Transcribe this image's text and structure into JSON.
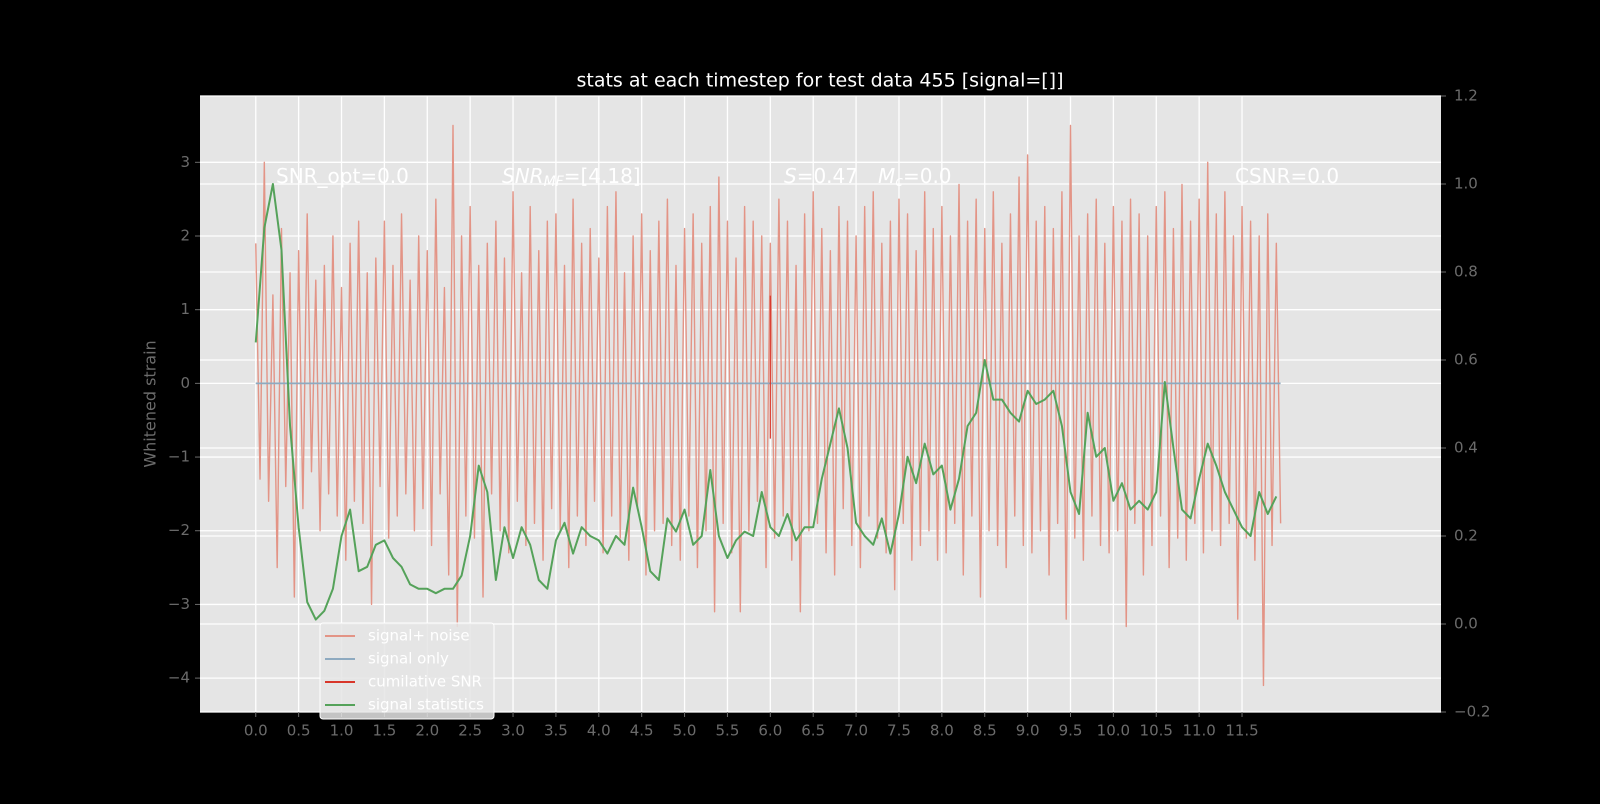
{
  "chart_data": {
    "type": "line",
    "title": "stats at each timestep for test data 455 [signal=[]]",
    "ylabel": "Whitened strain",
    "xlim": [
      -0.65,
      13.82
    ],
    "ylim": [
      -4.46,
      3.9
    ],
    "y2lim": [
      -0.2,
      1.2
    ],
    "grid": true,
    "legend": "lower left",
    "xticks": [
      {
        "value": 0,
        "label": "0.0"
      },
      0.5,
      {
        "value": 1,
        "label": "1.0"
      },
      1.5,
      {
        "value": 2,
        "label": "2.0"
      },
      2.5,
      {
        "value": 3,
        "label": "3.0"
      },
      3.5,
      {
        "value": 4,
        "label": "4.0"
      },
      4.5,
      {
        "value": 5,
        "label": "5.0"
      },
      5.5,
      {
        "value": 6,
        "label": "6.0"
      },
      6.5,
      {
        "value": 7,
        "label": "7.0"
      },
      7.5,
      {
        "value": 8,
        "label": "8.0"
      },
      8.5,
      {
        "value": 9,
        "label": "9.0"
      },
      9.5,
      {
        "value": 10,
        "label": "10.0"
      },
      10.5,
      {
        "value": 11,
        "label": "11.0"
      },
      11.5
    ],
    "yticks": [
      {
        "value": -4,
        "label": "−4"
      },
      {
        "value": -3,
        "label": "−3"
      },
      {
        "value": -2,
        "label": "−2"
      },
      {
        "value": -1,
        "label": "−1"
      },
      0,
      1,
      2,
      3
    ],
    "y2ticks": [
      {
        "value": -0.2,
        "label": "−0.2"
      },
      {
        "value": 0,
        "label": "0.0"
      },
      0.2,
      0.4,
      0.6,
      0.8,
      {
        "value": 1,
        "label": "1.0"
      },
      1.2
    ],
    "annotations": [
      {
        "text": "SNR_opt=0.0"
      },
      {
        "symbol": "SNR",
        "subscript": "MF",
        "text": "=[4.18]"
      },
      {
        "symbol": "S",
        "text": "=0.47"
      },
      {
        "symbol": "M",
        "subscript": "c",
        "text": "=0.0"
      },
      {
        "text": "CSNR=0.0"
      }
    ],
    "series": [
      {
        "name": "signal+ noise",
        "color": "#e39486",
        "x": [
          0,
          0.05,
          0.1,
          0.15,
          0.2,
          0.25,
          0.3,
          0.35,
          0.4,
          0.45,
          0.5,
          0.55,
          0.6,
          0.65,
          0.7,
          0.75,
          0.8,
          0.85,
          0.9,
          0.95,
          1,
          1.05,
          1.1,
          1.15,
          1.2,
          1.25,
          1.3,
          1.35,
          1.4,
          1.45,
          1.5,
          1.55,
          1.6,
          1.65,
          1.7,
          1.75,
          1.8,
          1.85,
          1.9,
          1.95,
          2,
          2.05,
          2.1,
          2.15,
          2.2,
          2.25,
          2.3,
          2.35,
          2.4,
          2.45,
          2.5,
          2.55,
          2.6,
          2.65,
          2.7,
          2.75,
          2.8,
          2.85,
          2.9,
          2.95,
          3,
          3.05,
          3.1,
          3.15,
          3.2,
          3.25,
          3.3,
          3.35,
          3.4,
          3.45,
          3.5,
          3.55,
          3.6,
          3.65,
          3.7,
          3.75,
          3.8,
          3.85,
          3.9,
          3.95,
          4,
          4.05,
          4.1,
          4.15,
          4.2,
          4.25,
          4.3,
          4.35,
          4.4,
          4.45,
          4.5,
          4.55,
          4.6,
          4.65,
          4.7,
          4.75,
          4.8,
          4.85,
          4.9,
          4.95,
          5,
          5.05,
          5.1,
          5.15,
          5.2,
          5.25,
          5.3,
          5.35,
          5.4,
          5.45,
          5.5,
          5.55,
          5.6,
          5.65,
          5.7,
          5.75,
          5.8,
          5.85,
          5.9,
          5.95,
          6,
          6.05,
          6.1,
          6.15,
          6.2,
          6.25,
          6.3,
          6.35,
          6.4,
          6.45,
          6.5,
          6.55,
          6.6,
          6.65,
          6.7,
          6.75,
          6.8,
          6.85,
          6.9,
          6.95,
          7,
          7.05,
          7.1,
          7.15,
          7.2,
          7.25,
          7.3,
          7.35,
          7.4,
          7.45,
          7.5,
          7.55,
          7.6,
          7.65,
          7.7,
          7.75,
          7.8,
          7.85,
          7.9,
          7.95,
          8,
          8.05,
          8.1,
          8.15,
          8.2,
          8.25,
          8.3,
          8.35,
          8.4,
          8.45,
          8.5,
          8.55,
          8.6,
          8.65,
          8.7,
          8.75,
          8.8,
          8.85,
          8.9,
          8.95,
          9,
          9.05,
          9.1,
          9.15,
          9.2,
          9.25,
          9.3,
          9.35,
          9.4,
          9.45,
          9.5,
          9.55,
          9.6,
          9.65,
          9.7,
          9.75,
          9.8,
          9.85,
          9.9,
          9.95,
          10,
          10.05,
          10.1,
          10.15,
          10.2,
          10.25,
          10.3,
          10.35,
          10.4,
          10.45,
          10.5,
          10.55,
          10.6,
          10.65,
          10.7,
          10.75,
          10.8,
          10.85,
          10.9,
          10.95,
          11,
          11.05,
          11.1,
          11.15,
          11.2,
          11.25,
          11.3,
          11.35,
          11.4,
          11.45,
          11.5,
          11.55,
          11.6,
          11.65,
          11.7,
          11.75,
          11.8,
          11.85,
          11.9,
          11.95
        ],
        "values": [
          1.9,
          -1.3,
          3.0,
          -1.6,
          1.2,
          -2.5,
          2.1,
          -1.4,
          1.5,
          -2.9,
          1.8,
          -1.7,
          2.3,
          -1.2,
          1.4,
          -2.0,
          1.6,
          -1.5,
          2.0,
          -1.8,
          1.3,
          -2.4,
          1.9,
          -1.6,
          2.2,
          -1.9,
          1.5,
          -3.0,
          1.7,
          -1.4,
          2.2,
          -2.1,
          1.6,
          -1.8,
          2.3,
          -1.5,
          1.4,
          -2.0,
          2.0,
          -1.7,
          1.8,
          -2.2,
          2.5,
          -1.5,
          1.3,
          -2.6,
          3.5,
          -3.3,
          2.0,
          -1.8,
          2.4,
          -2.1,
          1.6,
          -2.9,
          1.9,
          -1.5,
          2.2,
          -2.0,
          1.7,
          -2.3,
          2.6,
          -1.6,
          1.5,
          -2.2,
          2.4,
          -1.9,
          1.8,
          -2.4,
          2.2,
          -1.7,
          2.3,
          -2.0,
          1.6,
          -2.5,
          2.5,
          -1.8,
          1.9,
          -2.2,
          2.1,
          -1.6,
          1.7,
          -2.3,
          2.4,
          -1.8,
          2.6,
          -2.1,
          1.5,
          -2.4,
          2.0,
          -1.7,
          2.3,
          -2.6,
          1.8,
          -2.0,
          2.2,
          -1.9,
          2.5,
          -2.2,
          1.6,
          -2.4,
          2.1,
          -1.8,
          2.3,
          -2.5,
          1.9,
          -2.0,
          2.4,
          -3.1,
          2.8,
          -1.9,
          2.2,
          -2.3,
          1.7,
          -3.1,
          2.4,
          -2.0,
          2.2,
          -1.6,
          2.0,
          -2.5,
          1.9,
          -2.1,
          2.5,
          -1.8,
          2.2,
          -2.4,
          1.6,
          -3.1,
          2.3,
          -2.0,
          2.6,
          -1.9,
          2.1,
          -2.3,
          1.8,
          -2.6,
          2.4,
          -1.7,
          2.2,
          -2.2,
          2.0,
          -2.5,
          2.4,
          -1.8,
          2.6,
          -2.1,
          1.9,
          -2.3,
          2.2,
          -2.8,
          2.5,
          -1.9,
          2.3,
          -2.4,
          1.8,
          -2.2,
          2.6,
          -2.0,
          2.1,
          -2.4,
          2.4,
          -2.3,
          2.0,
          -1.9,
          2.7,
          -2.6,
          2.2,
          -1.8,
          2.5,
          -2.9,
          2.1,
          -2.0,
          2.6,
          -2.2,
          1.9,
          -2.5,
          2.3,
          -1.8,
          2.8,
          -2.2,
          3.1,
          -2.3,
          2.2,
          -2.0,
          2.4,
          -2.6,
          2.1,
          -1.9,
          2.6,
          -3.2,
          3.5,
          -2.1,
          2.0,
          -2.4,
          2.3,
          -1.8,
          2.5,
          -2.2,
          1.9,
          -2.3,
          2.4,
          -2.0,
          2.2,
          -3.3,
          2.5,
          -1.9,
          2.3,
          -2.6,
          2.0,
          -2.2,
          2.4,
          -1.8,
          2.6,
          -2.5,
          2.1,
          -2.1,
          2.7,
          -2.4,
          2.2,
          -1.9,
          2.5,
          -2.3,
          3.0,
          -2.0,
          2.3,
          -2.2,
          2.6,
          -1.9,
          2.0,
          -3.2,
          2.4,
          -2.1,
          2.2,
          -2.4,
          2.0,
          -4.1,
          2.3,
          -2.2,
          1.9,
          -1.9
        ]
      },
      {
        "name": "signal only",
        "color": "#8eaac0",
        "x": [
          0,
          11.95
        ],
        "values": [
          0,
          0
        ]
      },
      {
        "name": "cumilative SNR",
        "color": "#d8362a",
        "x": [
          6.0,
          6.0
        ],
        "values": [
          1.19,
          -0.75
        ]
      },
      {
        "name": "signal statistics",
        "color": "#55a25a",
        "axis": "y2",
        "x": [
          0,
          0.1,
          0.2,
          0.3,
          0.4,
          0.5,
          0.6,
          0.7,
          0.8,
          0.9,
          1,
          1.1,
          1.2,
          1.3,
          1.4,
          1.5,
          1.6,
          1.7,
          1.8,
          1.9,
          2,
          2.1,
          2.2,
          2.3,
          2.4,
          2.5,
          2.6,
          2.7,
          2.8,
          2.9,
          3,
          3.1,
          3.2,
          3.3,
          3.4,
          3.5,
          3.6,
          3.7,
          3.8,
          3.9,
          4,
          4.1,
          4.2,
          4.3,
          4.4,
          4.5,
          4.6,
          4.7,
          4.8,
          4.9,
          5,
          5.1,
          5.2,
          5.3,
          5.4,
          5.5,
          5.6,
          5.7,
          5.8,
          5.9,
          6,
          6.1,
          6.2,
          6.3,
          6.4,
          6.5,
          6.6,
          6.7,
          6.8,
          6.9,
          7,
          7.1,
          7.2,
          7.3,
          7.4,
          7.5,
          7.6,
          7.7,
          7.8,
          7.9,
          8,
          8.1,
          8.2,
          8.3,
          8.4,
          8.5,
          8.6,
          8.7,
          8.8,
          8.9,
          9,
          9.1,
          9.2,
          9.3,
          9.4,
          9.5,
          9.6,
          9.7,
          9.8,
          9.9,
          10,
          10.1,
          10.2,
          10.3,
          10.4,
          10.5,
          10.6,
          10.7,
          10.8,
          10.9,
          11,
          11.1,
          11.2,
          11.3,
          11.4,
          11.5,
          11.6,
          11.7,
          11.8,
          11.9
        ],
        "values": [
          0.64,
          0.9,
          1.0,
          0.85,
          0.45,
          0.22,
          0.05,
          0.01,
          0.03,
          0.08,
          0.2,
          0.26,
          0.12,
          0.13,
          0.18,
          0.19,
          0.15,
          0.13,
          0.09,
          0.08,
          0.08,
          0.07,
          0.08,
          0.08,
          0.11,
          0.2,
          0.36,
          0.3,
          0.1,
          0.22,
          0.15,
          0.22,
          0.18,
          0.1,
          0.08,
          0.19,
          0.23,
          0.16,
          0.22,
          0.2,
          0.19,
          0.16,
          0.2,
          0.18,
          0.31,
          0.22,
          0.12,
          0.1,
          0.24,
          0.21,
          0.26,
          0.18,
          0.2,
          0.35,
          0.2,
          0.15,
          0.19,
          0.21,
          0.2,
          0.3,
          0.22,
          0.2,
          0.25,
          0.19,
          0.22,
          0.22,
          0.33,
          0.41,
          0.49,
          0.4,
          0.23,
          0.2,
          0.18,
          0.24,
          0.16,
          0.25,
          0.38,
          0.32,
          0.41,
          0.34,
          0.36,
          0.26,
          0.33,
          0.45,
          0.48,
          0.6,
          0.51,
          0.51,
          0.48,
          0.46,
          0.53,
          0.5,
          0.51,
          0.53,
          0.45,
          0.3,
          0.25,
          0.48,
          0.38,
          0.4,
          0.28,
          0.32,
          0.26,
          0.28,
          0.26,
          0.3,
          0.55,
          0.4,
          0.26,
          0.24,
          0.33,
          0.41,
          0.36,
          0.3,
          0.26,
          0.22,
          0.2,
          0.3,
          0.25,
          0.29
        ]
      }
    ]
  }
}
